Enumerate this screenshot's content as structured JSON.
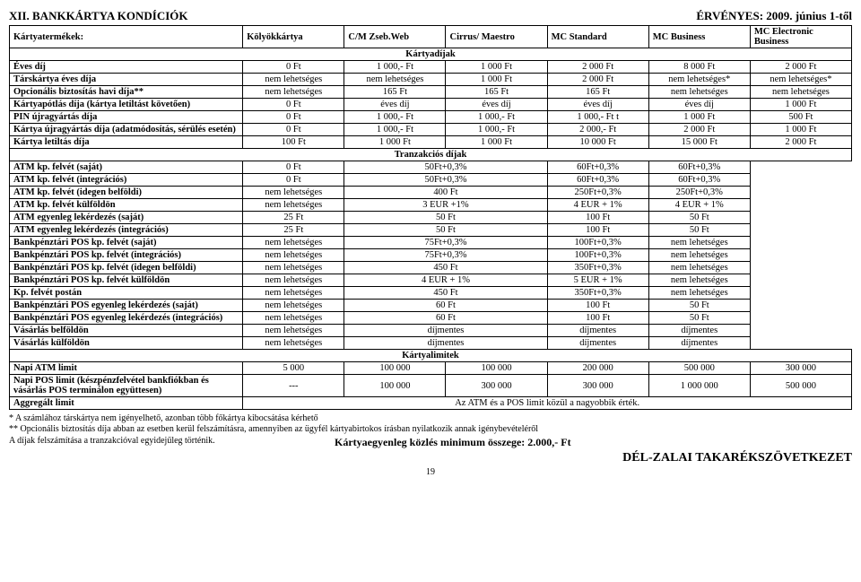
{
  "header": {
    "left": "XII. BANKKÁRTYA KONDÍCIÓK",
    "right": "ÉRVÉNYES: 2009. június 1-től"
  },
  "columns": [
    "Kártyatermékek:",
    "Kölyökkártya",
    "C/M Zseb.Web",
    "Cirrus/ Maestro",
    "MC Standard",
    "MC Business",
    "MC Electronic Business"
  ],
  "sections": {
    "s1": "Kártyadíjak",
    "s2": "Tranzakciós díjak",
    "s3": "Kártyalimitek"
  },
  "rows": [
    {
      "label": "Éves díj",
      "v": [
        "0 Ft",
        "1 000,- Ft",
        "1 000 Ft",
        "2 000 Ft",
        "8 000 Ft",
        "2 000 Ft"
      ]
    },
    {
      "label": "Társkártya éves díja",
      "v": [
        "nem lehetséges",
        "nem lehetséges",
        "1 000 Ft",
        "2 000 Ft",
        "nem lehetséges*",
        "nem lehetséges*"
      ]
    },
    {
      "label": "Opcionális biztosítás havi díja**",
      "v": [
        "nem lehetséges",
        "165 Ft",
        "165 Ft",
        "165 Ft",
        "nem lehetséges",
        "nem lehetséges"
      ]
    },
    {
      "label": "Kártyapótlás díja (kártya letiltást követően)",
      "v": [
        "0 Ft",
        "éves díj",
        "éves díj",
        "éves díj",
        "éves díj",
        "1 000 Ft"
      ]
    },
    {
      "label": "PIN újragyártás díja",
      "v": [
        "0 Ft",
        "1 000,- Ft",
        "1 000,- Ft",
        "1 000,- Ft t",
        "1 000 Ft",
        "500 Ft"
      ]
    },
    {
      "label": "Kártya újragyártás díja (adatmódosítás, sérülés esetén)",
      "v": [
        "0 Ft",
        "1 000,- Ft",
        "1 000,- Ft",
        "2 000,- Ft",
        "2 000 Ft",
        "1 000 Ft"
      ]
    },
    {
      "label": "Kártya letiltás díja",
      "v": [
        "100 Ft",
        "1 000 Ft",
        "1 000 Ft",
        "10 000 Ft",
        "15 000 Ft",
        "2 000 Ft"
      ]
    }
  ],
  "rows2": [
    {
      "label": "ATM kp. felvét (saját)",
      "v": [
        "0 Ft",
        {
          "span": 2,
          "t": "50Ft+0,3%"
        },
        null,
        "60Ft+0,3%",
        "60Ft+0,3%"
      ]
    },
    {
      "label": "ATM kp. felvét (integrációs)",
      "v": [
        "0 Ft",
        {
          "span": 2,
          "t": "50Ft+0,3%"
        },
        null,
        "60Ft+0,3%",
        "60Ft+0,3%"
      ]
    },
    {
      "label": "ATM kp. felvét (idegen belföldi)",
      "v": [
        "nem lehetséges",
        {
          "span": 2,
          "t": "400 Ft"
        },
        null,
        "250Ft+0,3%",
        "250Ft+0,3%"
      ]
    },
    {
      "label": "ATM kp. felvét külföldön",
      "v": [
        "nem lehetséges",
        {
          "span": 2,
          "t": "3 EUR +1%"
        },
        null,
        "4 EUR + 1%",
        "4 EUR + 1%"
      ]
    },
    {
      "label": "ATM egyenleg lekérdezés (saját)",
      "v": [
        "25 Ft",
        {
          "span": 2,
          "t": "50 Ft"
        },
        null,
        "100 Ft",
        "50 Ft"
      ]
    },
    {
      "label": "ATM egyenleg lekérdezés (integrációs)",
      "v": [
        "25 Ft",
        {
          "span": 2,
          "t": "50 Ft"
        },
        null,
        "100 Ft",
        "50 Ft"
      ]
    },
    {
      "label": "Bankpénztári POS kp. felvét (saját)",
      "v": [
        "nem lehetséges",
        {
          "span": 2,
          "t": "75Ft+0,3%"
        },
        null,
        "100Ft+0,3%",
        "nem lehetséges"
      ]
    },
    {
      "label": "Bankpénztári POS kp. felvét (integrációs)",
      "v": [
        "nem lehetséges",
        {
          "span": 2,
          "t": "75Ft+0,3%"
        },
        null,
        "100Ft+0,3%",
        "nem lehetséges"
      ]
    },
    {
      "label": "Bankpénztári POS kp. felvét (idegen belföldi)",
      "v": [
        "nem lehetséges",
        {
          "span": 2,
          "t": "450 Ft"
        },
        null,
        "350Ft+0,3%",
        "nem lehetséges"
      ]
    },
    {
      "label": "Bankpénztári POS kp. felvét külföldön",
      "v": [
        "nem lehetséges",
        {
          "span": 2,
          "t": "4 EUR + 1%"
        },
        null,
        "5 EUR + 1%",
        "nem lehetséges"
      ]
    },
    {
      "label": "Kp. felvét postán",
      "v": [
        "nem lehetséges",
        {
          "span": 2,
          "t": "450 Ft"
        },
        null,
        "350Ft+0,3%",
        "nem lehetséges"
      ]
    },
    {
      "label": "Bankpénztári POS egyenleg lekérdezés (saját)",
      "v": [
        "nem lehetséges",
        {
          "span": 2,
          "t": "60 Ft"
        },
        null,
        "100 Ft",
        "50 Ft"
      ]
    },
    {
      "label": "Bankpénztári POS egyenleg lekérdezés (integrációs)",
      "v": [
        "nem lehetséges",
        {
          "span": 2,
          "t": "60 Ft"
        },
        null,
        "100 Ft",
        "50 Ft"
      ]
    },
    {
      "label": "Vásárlás belföldön",
      "v": [
        "nem lehetséges",
        {
          "span": 2,
          "t": "díjmentes"
        },
        null,
        "díjmentes",
        "díjmentes"
      ]
    },
    {
      "label": "Vásárlás külföldön",
      "v": [
        "nem lehetséges",
        {
          "span": 2,
          "t": "díjmentes"
        },
        null,
        "díjmentes",
        "díjmentes"
      ]
    }
  ],
  "rows3": [
    {
      "label": "Napi ATM limit",
      "v": [
        "5 000",
        "100 000",
        "100 000",
        "200 000",
        "500 000",
        "300 000"
      ]
    },
    {
      "label": "Napi POS limit (készpénzfelvétel bankfiókban és vásárlás POS terminálon együttesen)",
      "v": [
        "---",
        "100 000",
        "300 000",
        "300 000",
        "1 000 000",
        "500 000"
      ]
    },
    {
      "label": "Aggregált limit",
      "full": "Az ATM és a POS limit közül a nagyobbik érték."
    }
  ],
  "footnotes": [
    "* A számlához társkártya nem igényelhető, azonban több főkártya kibocsátása kérhető",
    "** Opcionális biztosítás díja abban az esetben kerül felszámításra, amennyiben az ügyfél kártyabirtokos írásban nyilatkozik annak igénybevételéről"
  ],
  "bottom": {
    "left": "A díjak felszámítása a tranzakcióval egyidejűleg történik.",
    "center": "Kártyaegyenleg közlés minimum összege: 2.000,- Ft"
  },
  "brand": "DÉL-ZALAI TAKARÉKSZÖVETKEZET",
  "pagenum": "19"
}
